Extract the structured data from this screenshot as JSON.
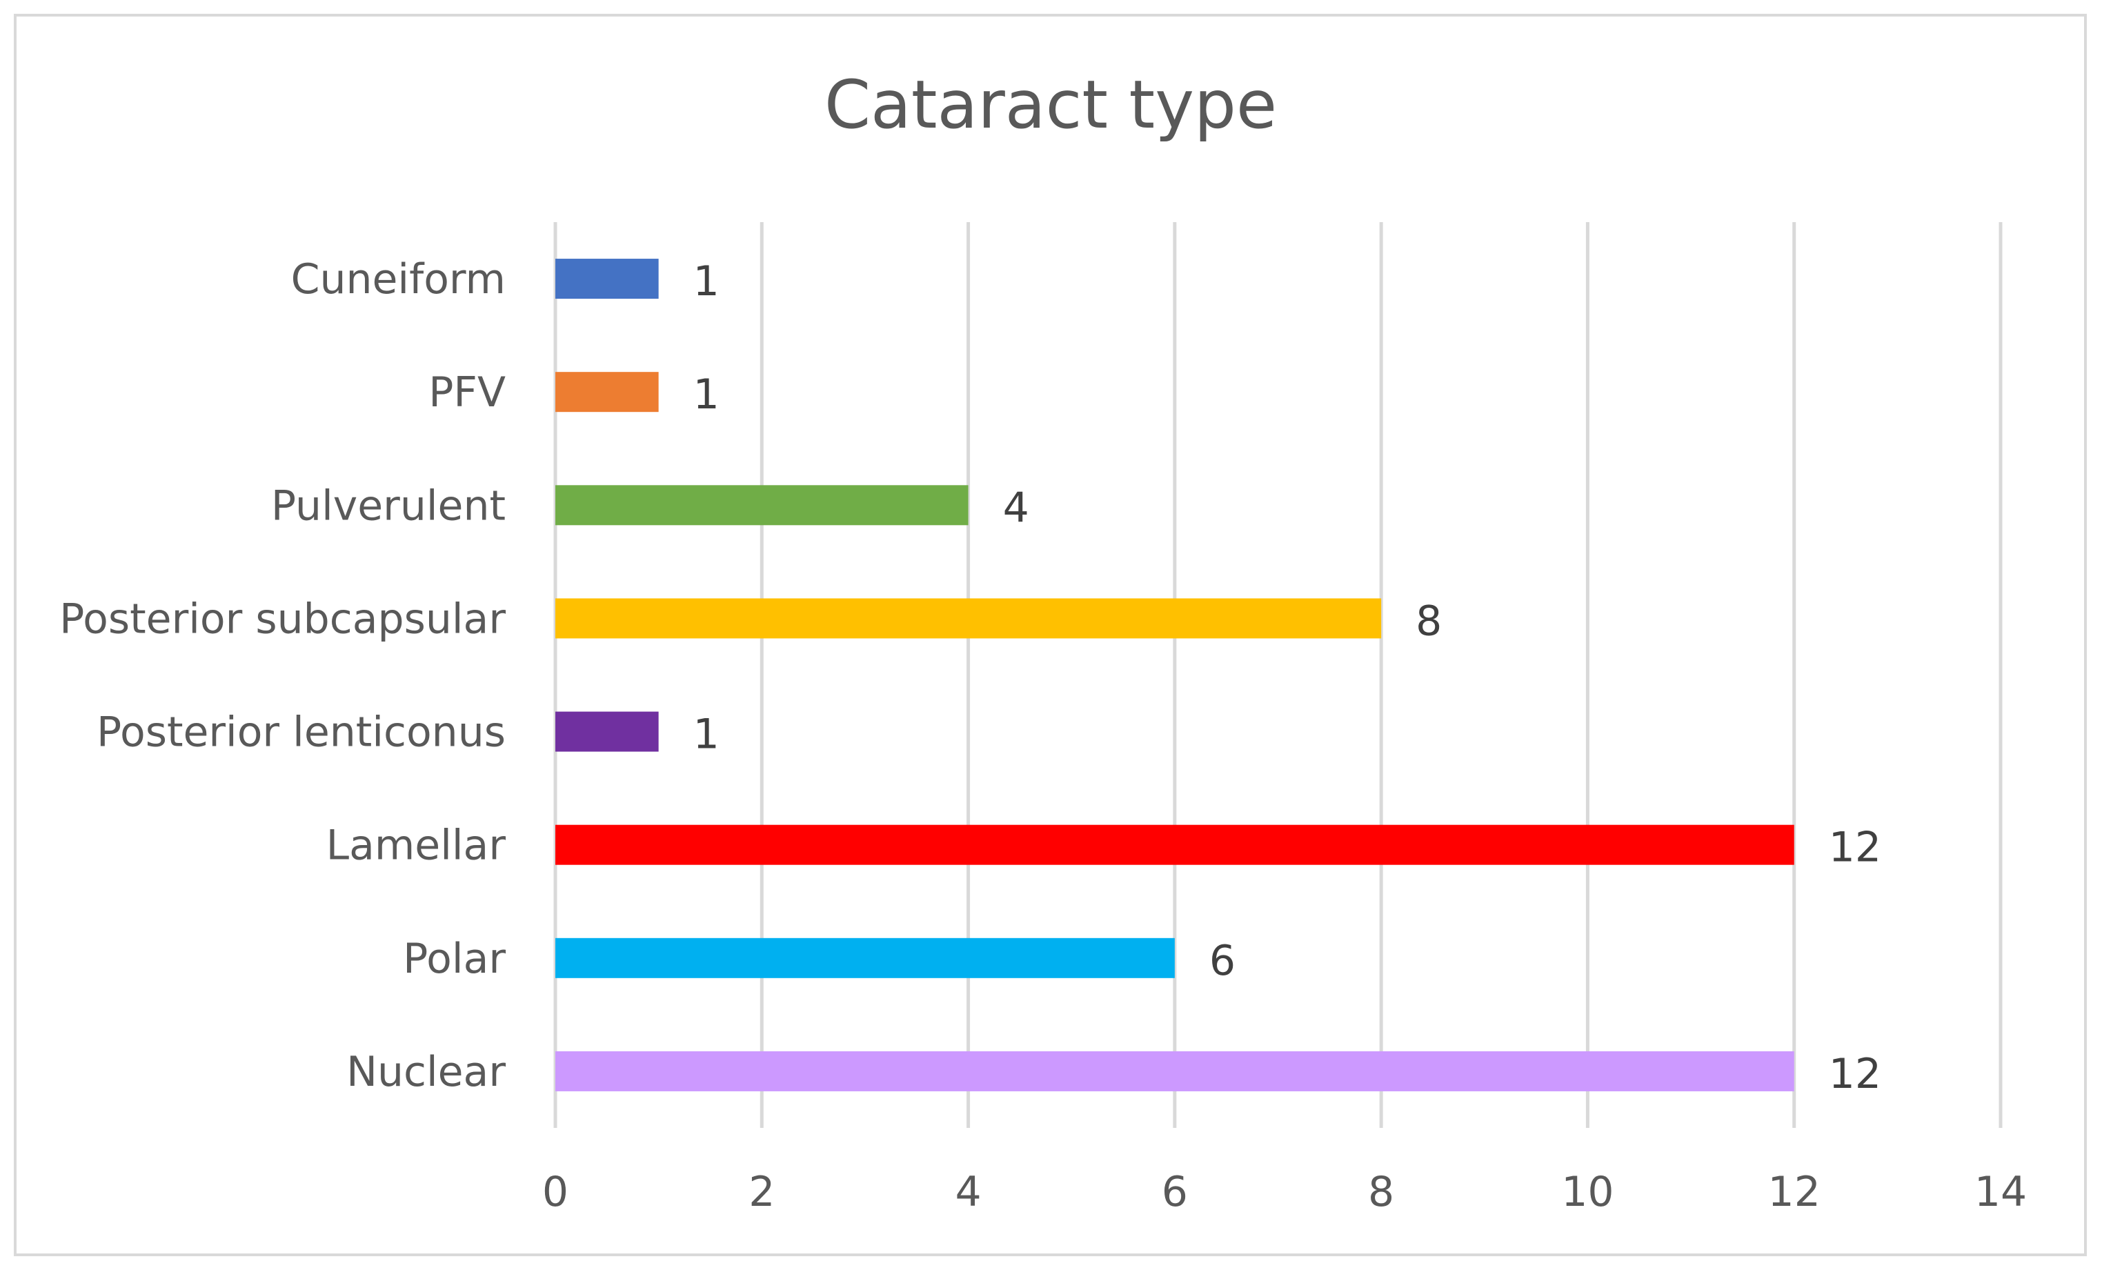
{
  "chart_data": {
    "type": "bar",
    "orientation": "horizontal",
    "title": "Cataract type",
    "xlabel": "",
    "ylabel": "",
    "categories": [
      "Cuneiform",
      "PFV",
      "Pulverulent",
      "Posterior subcapsular",
      "Posterior lenticonus",
      "Lamellar",
      "Polar",
      "Nuclear"
    ],
    "values": [
      1,
      1,
      4,
      8,
      1,
      12,
      6,
      12
    ],
    "colors": [
      "#4472C4",
      "#ED7D31",
      "#70AD47",
      "#FFC000",
      "#7030A0",
      "#FF0000",
      "#00B0F0",
      "#CC99FF"
    ],
    "data_labels": [
      "1",
      "1",
      "4",
      "8",
      "1",
      "12",
      "6",
      "12"
    ],
    "xlim": [
      0,
      14
    ],
    "x_ticks": [
      0,
      2,
      4,
      6,
      8,
      10,
      12,
      14
    ],
    "x_tick_labels": [
      "0",
      "2",
      "4",
      "6",
      "8",
      "10",
      "12",
      "14"
    ],
    "grid": "vertical",
    "legend": "none"
  }
}
